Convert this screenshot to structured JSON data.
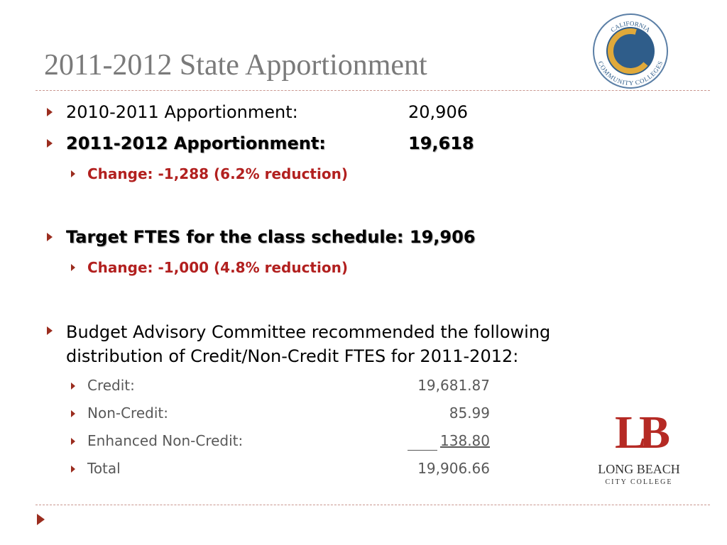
{
  "title": "2011-2012 State Apportionment",
  "bullets": [
    {
      "label": "2010-2011 Apportionment:",
      "value": "20,906"
    },
    {
      "label": "2011-2012 Apportionment:",
      "value": "19,618",
      "sub": [
        "Change: -1,288 (6.2% reduction)"
      ]
    },
    {
      "label": "Target FTES for the class schedule: 19,906",
      "sub": [
        "Change: -1,000 (4.8% reduction)"
      ]
    },
    {
      "label": "Budget Advisory Committee recommended the following distribution of Credit/Non-Credit FTES for 2011-2012:",
      "items": [
        {
          "label": "Credit:",
          "value": "19,681.87"
        },
        {
          "label": "Non-Credit:",
          "value": "85.99"
        },
        {
          "label": "Enhanced Non-Credit:",
          "value": "138.80"
        },
        {
          "label": "Total",
          "value": "19,906.66"
        }
      ]
    }
  ],
  "logos": {
    "ccc": {
      "top": "CALIFORNIA",
      "bottom": "COMMUNITY COLLEGES"
    },
    "lbcc": {
      "mark": "LB",
      "name": "LONG BEACH",
      "sub": "CITY COLLEGE"
    }
  }
}
